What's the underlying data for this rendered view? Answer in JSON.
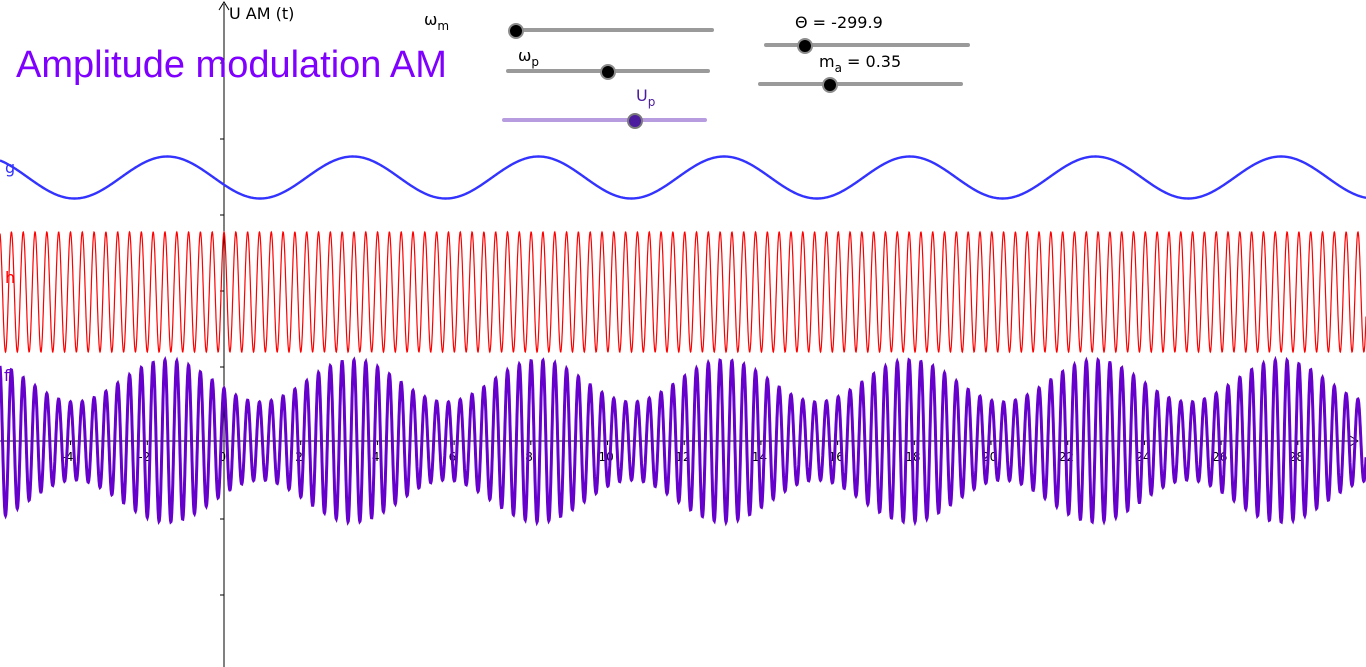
{
  "title": "Amplitude modulation AM",
  "axis": {
    "y_label": "U AM (t)",
    "x_ticks": [
      "-4",
      "-2",
      "0",
      "2",
      "4",
      "6",
      "8",
      "10",
      "12",
      "14",
      "16",
      "18",
      "20",
      "22",
      "24",
      "26",
      "28"
    ],
    "x_unit_visible": "t"
  },
  "functions": {
    "g": {
      "label": "g",
      "color": "#3333FF"
    },
    "h": {
      "label": "h",
      "color": "#FF0000"
    },
    "f": {
      "label": "f",
      "color": "#6600CC"
    }
  },
  "sliders": {
    "omega_m": {
      "label": "ω",
      "sub": "m",
      "value_text": "",
      "fraction": 0.02
    },
    "omega_p": {
      "label": "ω",
      "sub": "p",
      "value_text": "",
      "fraction": 0.5
    },
    "U_p": {
      "label": "U",
      "sub": "p",
      "value_text": "",
      "fraction": 0.65
    },
    "theta": {
      "label": "Θ = -299.9",
      "fraction": 0.2
    },
    "m_a": {
      "label": "m",
      "sub": "a",
      "value_text": " = 0.35",
      "fraction": 0.35
    }
  },
  "colors": {
    "title": "#7F00FF",
    "carrier": "#FF0000",
    "modulating": "#3333FF",
    "am_signal": "#6600CC",
    "slider_accent": "#4b1c9e"
  }
}
